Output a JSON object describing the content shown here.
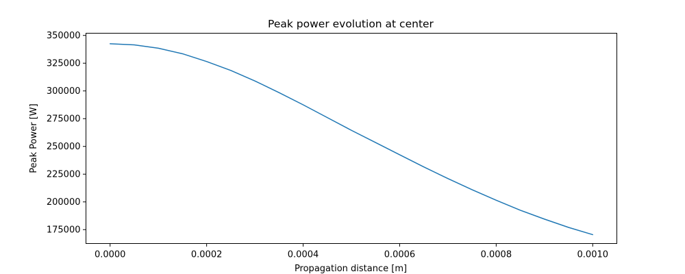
{
  "chart_data": {
    "type": "line",
    "title": "Peak power evolution at center",
    "xlabel": "Propagation distance [m]",
    "ylabel": "Peak Power [W]",
    "xlim": [
      -5e-05,
      0.00105
    ],
    "ylim": [
      162500,
      352000
    ],
    "x_ticks": [
      0.0,
      0.0002,
      0.0004,
      0.0006,
      0.0008,
      0.001
    ],
    "x_tick_labels": [
      "0.0000",
      "0.0002",
      "0.0004",
      "0.0006",
      "0.0008",
      "0.0010"
    ],
    "y_ticks": [
      175000,
      200000,
      225000,
      250000,
      275000,
      300000,
      325000,
      350000
    ],
    "y_tick_labels": [
      "175000",
      "200000",
      "225000",
      "250000",
      "275000",
      "300000",
      "325000",
      "350000"
    ],
    "grid": false,
    "line_color": "#1f77b4",
    "series": [
      {
        "x": [
          0.0,
          5e-05,
          0.0001,
          0.00015,
          0.0002,
          0.00025,
          0.0003,
          0.00035,
          0.0004,
          0.00045,
          0.0005,
          0.00055,
          0.0006,
          0.00065,
          0.0007,
          0.00075,
          0.0008,
          0.00085,
          0.0009,
          0.00095,
          0.001
        ],
        "values": [
          342500,
          341500,
          338500,
          333500,
          326500,
          318500,
          309000,
          298500,
          287500,
          276000,
          264500,
          253500,
          242500,
          231500,
          221000,
          211000,
          201500,
          192500,
          184500,
          177000,
          170500
        ]
      }
    ]
  }
}
